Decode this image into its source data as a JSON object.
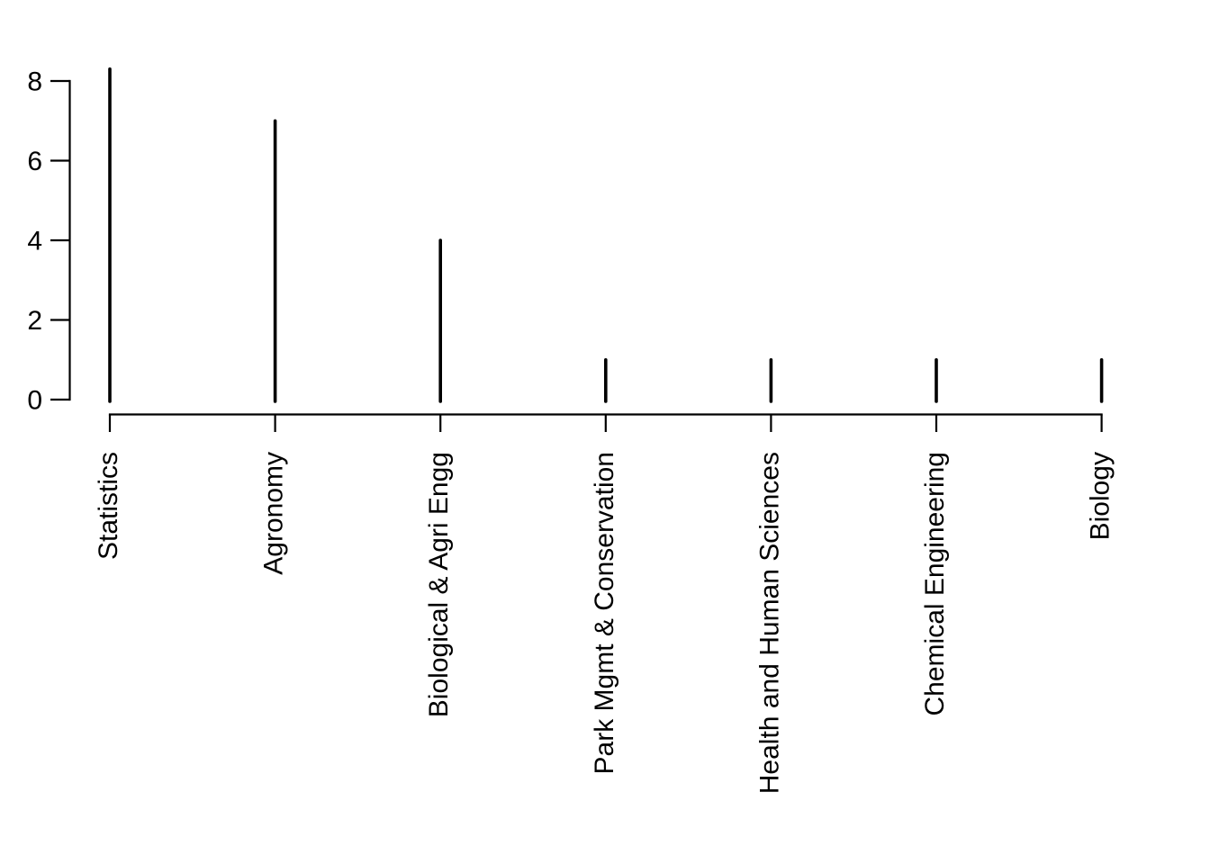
{
  "colors": {
    "background": "#ffffff",
    "foreground": "#000000"
  },
  "chart_data": {
    "type": "bar",
    "bar_style": "high-density-spike",
    "categories": [
      "Statistics",
      "Agronomy",
      "Biological & Agri Engg",
      "Park Mgmt & Conservation",
      "Health and Human Sciences",
      "Chemical Engineering",
      "Biology"
    ],
    "values": [
      8.3,
      7,
      4,
      1,
      1,
      1,
      1
    ],
    "ytick_labels": [
      "0",
      "2",
      "4",
      "6",
      "8"
    ],
    "yticks": [
      0,
      2,
      4,
      6,
      8
    ],
    "ylim": [
      0,
      8.35
    ],
    "xlabel_rotation_deg": 90,
    "grid": false,
    "legend": false
  }
}
